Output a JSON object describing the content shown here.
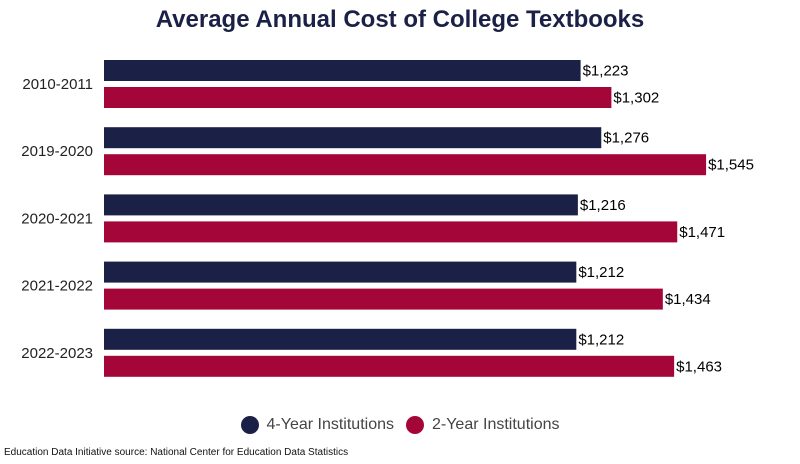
{
  "chart_data": {
    "type": "bar",
    "orientation": "horizontal",
    "title": "Average Annual Cost of College Textbooks",
    "categories": [
      "2010-2011",
      "2019-2020",
      "2020-2021",
      "2021-2022",
      "2022-2023"
    ],
    "series": [
      {
        "name": "4-Year Institutions",
        "color": "#1b2146",
        "values": [
          1223,
          1276,
          1216,
          1212,
          1212
        ],
        "labels": [
          "$1,223",
          "$1,276",
          "$1,216",
          "$1,212",
          "$1,212"
        ]
      },
      {
        "name": "2-Year Institutions",
        "color": "#a5063a",
        "values": [
          1302,
          1545,
          1471,
          1434,
          1463
        ],
        "labels": [
          "$1,302",
          "$1,545",
          "$1,471",
          "$1,434",
          "$1,463"
        ]
      }
    ],
    "xlim": [
      0,
      1700
    ],
    "grid": false,
    "legend_position": "bottom-center"
  },
  "source_note": "Education Data Initiative source: National Center for Education Data Statistics"
}
